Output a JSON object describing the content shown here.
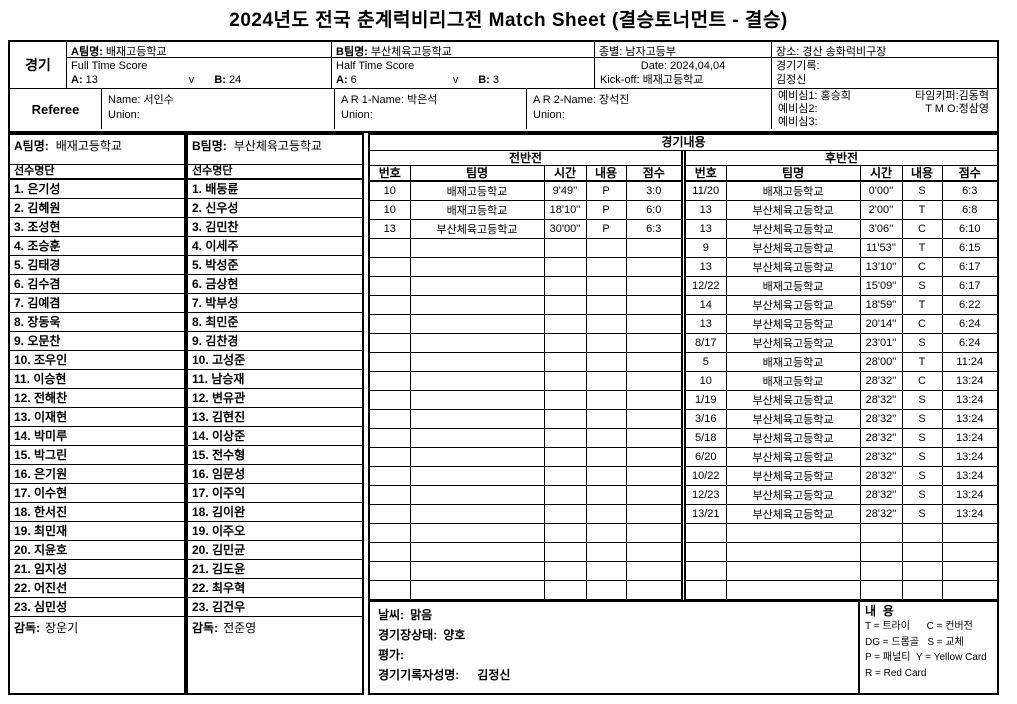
{
  "title": "2024년도 전국 춘계럭비리그전  Match Sheet (결승토너먼트 - 결승)",
  "header": {
    "game_label": "경기",
    "referee_label": "Referee",
    "team_a": {
      "label": "A팀명:",
      "name": "배재고등학교",
      "score_title": "Full Time Score",
      "a_label": "A:",
      "a_value": "13",
      "v": "v",
      "b_label": "B:",
      "b_value": "24"
    },
    "team_b": {
      "label": "B팀명:",
      "name": "부산체육고등학교",
      "score_title": "Half Time Score",
      "a_label": "A:",
      "a_value": "6",
      "v": "v",
      "b_label": "B:",
      "b_value": "3"
    },
    "category": {
      "label": "종별:",
      "value": "남자고등부",
      "date": "Date: 2024,04,04",
      "kickoff": "Kick-off: 배재고등학교"
    },
    "venue": {
      "label": "장소:",
      "value": "경산 송화럭비구장",
      "recorder_label": "경기기록:",
      "recorder_name": "김정신"
    },
    "referee": {
      "name_label": "Name:",
      "name": "서인수",
      "union_label": "Union:"
    },
    "ar1": {
      "name_label": "A R 1-Name:",
      "name": "박은석",
      "union_label": "Union:"
    },
    "ar2": {
      "name_label": "A R 2-Name:",
      "name": "장석진",
      "union_label": "Union:"
    },
    "officials": {
      "r1l": "예비심1: 홍승희",
      "r1r": "타임키퍼:김동혁",
      "r2l": "예비심2:",
      "r2r": "T M O:정삼영",
      "r3l": "예비심3:",
      "r3r": ""
    }
  },
  "roster_a": {
    "team_label": "A팀명:",
    "team_name": "배재고등학교",
    "list_header": "선수명단",
    "players": [
      "1. 은기성",
      "2. 김혜원",
      "3. 조성현",
      "4. 조승훈",
      "5. 김태경",
      "6. 김수겸",
      "7. 김예겸",
      "8. 장동욱",
      "9. 오문찬",
      "10. 조우인",
      "11. 이승현",
      "12. 전해찬",
      "13. 이재현",
      "14. 박미루",
      "15. 박그린",
      "16. 은기원",
      "17. 이수현",
      "18. 한서진",
      "19. 최민재",
      "20. 지윤호",
      "21. 임지성",
      "22. 어진선",
      "23. 심민성"
    ],
    "coach_label": "감독:",
    "coach_name": "장운기"
  },
  "roster_b": {
    "team_label": "B팀명:",
    "team_name": "부산체육고등학교",
    "list_header": "선수명단",
    "players": [
      "1. 배동륜",
      "2. 신우성",
      "3. 김민찬",
      "4. 이세주",
      "5. 박성준",
      "6. 금상현",
      "7. 박부성",
      "8. 최민준",
      "9. 김찬경",
      "10. 고성준",
      "11. 남승재",
      "12. 변유관",
      "13. 김현진",
      "14. 이상준",
      "15. 전수형",
      "16. 임문성",
      "17. 이주익",
      "18. 김이완",
      "19. 이주오",
      "20. 김민균",
      "21. 김도윤",
      "22. 최우혁",
      "23. 김건우"
    ],
    "coach_label": "감독:",
    "coach_name": "전준영"
  },
  "match": {
    "section_title": "경기내용",
    "columns": [
      "번호",
      "팀명",
      "시간",
      "내용",
      "점수"
    ],
    "first_half": {
      "title": "전반전",
      "rows": [
        [
          "10",
          "배재고등학교",
          "9'49''",
          "P",
          "3:0"
        ],
        [
          "10",
          "배재고등학교",
          "18'10''",
          "P",
          "6:0"
        ],
        [
          "13",
          "부산체육고등학교",
          "30'00''",
          "P",
          "6:3"
        ]
      ]
    },
    "second_half": {
      "title": "후반전",
      "rows": [
        [
          "11/20",
          "배재고등학교",
          "0'00''",
          "S",
          "6:3"
        ],
        [
          "13",
          "부산체육고등학교",
          "2'00''",
          "T",
          "6:8"
        ],
        [
          "13",
          "부산체육고등학교",
          "3'06''",
          "C",
          "6:10"
        ],
        [
          "9",
          "부산체육고등학교",
          "11'53''",
          "T",
          "6:15"
        ],
        [
          "13",
          "부산체육고등학교",
          "13'10''",
          "C",
          "6:17"
        ],
        [
          "12/22",
          "배재고등학교",
          "15'09''",
          "S",
          "6:17"
        ],
        [
          "14",
          "부산체육고등학교",
          "18'59''",
          "T",
          "6:22"
        ],
        [
          "13",
          "부산체육고등학교",
          "20'14''",
          "C",
          "6:24"
        ],
        [
          "8/17",
          "부산체육고등학교",
          "23'01''",
          "S",
          "6:24"
        ],
        [
          "5",
          "배재고등학교",
          "28'00''",
          "T",
          "11:24"
        ],
        [
          "10",
          "배재고등학교",
          "28'32''",
          "C",
          "13:24"
        ],
        [
          "1/19",
          "부산체육고등학교",
          "28'32''",
          "S",
          "13:24"
        ],
        [
          "3/16",
          "부산체육고등학교",
          "28'32''",
          "S",
          "13:24"
        ],
        [
          "5/18",
          "부산체육고등학교",
          "28'32''",
          "S",
          "13:24"
        ],
        [
          "6/20",
          "부산체육고등학교",
          "28'32''",
          "S",
          "13:24"
        ],
        [
          "10/22",
          "부산체육고등학교",
          "28'32''",
          "S",
          "13:24"
        ],
        [
          "12/23",
          "부산체육고등학교",
          "28'32''",
          "S",
          "13:24"
        ],
        [
          "13/21",
          "부산체육고등학교",
          "28'32''",
          "S",
          "13:24"
        ]
      ]
    }
  },
  "footer": {
    "weather_label": "날씨:",
    "weather": "맑음",
    "ground_label": "경기장상태:",
    "ground": "양호",
    "eval_label": "평가:",
    "recorder_label": "경기기록자성명:",
    "recorder": "김정신"
  },
  "legend": {
    "title": "내  용",
    "lines": [
      "T = 트라이      C = 컨버전",
      "DG = 드롭골   S = 교체",
      "P = 패널티  Y = Yellow Card",
      "R = Red Card"
    ]
  }
}
